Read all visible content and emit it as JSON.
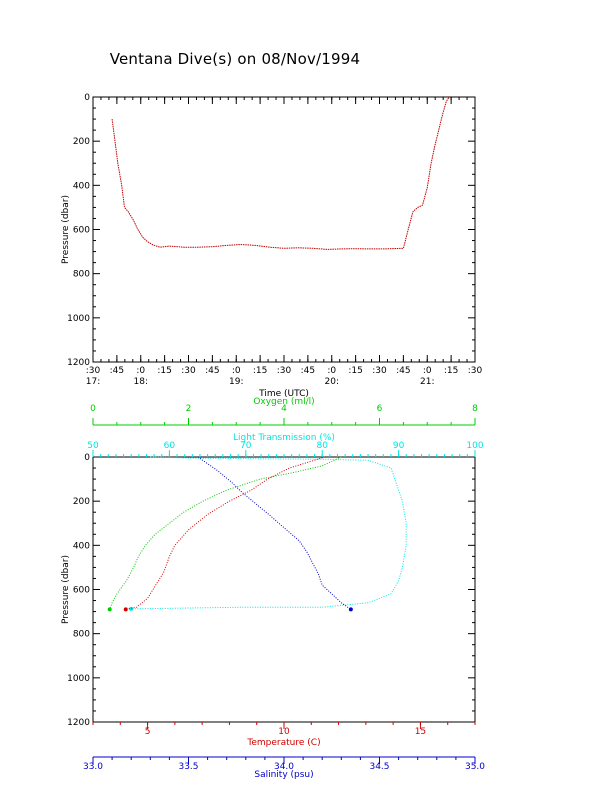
{
  "title": "Ventana Dive(s) on 08/Nov/1994",
  "chart_data": [
    {
      "type": "line",
      "title": "Ventana Dive(s) on 08/Nov/1994",
      "xlabel": "Time (UTC)",
      "ylabel": "Pressure (dbar)",
      "ylim": [
        1200,
        0
      ],
      "yticks": [
        0,
        200,
        400,
        600,
        800,
        1000,
        1200
      ],
      "xlim": [
        17.5,
        21.5
      ],
      "xticks_minutes": [
        ":30",
        ":45",
        ":0",
        ":15",
        ":30",
        ":45",
        ":0",
        ":15",
        ":30",
        ":45",
        ":0",
        ":15",
        ":30",
        ":45",
        ":0",
        ":15",
        ":30"
      ],
      "xticks_hours": [
        "17:",
        "18:",
        "19:",
        "20:",
        "21:"
      ],
      "series": [
        {
          "color": "#c00000",
          "x": [
            17.7,
            17.73,
            17.76,
            17.8,
            17.83,
            17.87,
            17.92,
            17.97,
            18.02,
            18.07,
            18.13,
            18.2,
            18.3,
            18.45,
            18.6,
            18.75,
            18.9,
            19.05,
            19.2,
            19.35,
            19.5,
            19.65,
            19.8,
            19.95,
            20.1,
            20.25,
            20.4,
            20.55,
            20.75,
            20.8,
            20.85,
            20.9,
            20.95,
            21.0,
            21.04,
            21.08,
            21.12,
            21.16,
            21.2,
            21.23
          ],
          "y": [
            100,
            200,
            300,
            400,
            500,
            520,
            555,
            600,
            635,
            655,
            670,
            680,
            675,
            680,
            680,
            678,
            672,
            668,
            672,
            680,
            685,
            683,
            685,
            690,
            688,
            687,
            688,
            688,
            685,
            600,
            520,
            500,
            490,
            410,
            300,
            220,
            150,
            80,
            20,
            0
          ]
        }
      ]
    },
    {
      "type": "scatter",
      "ylabel": "Pressure (dbar)",
      "ylim": [
        1200,
        0
      ],
      "yticks": [
        0,
        200,
        400,
        600,
        800,
        1000,
        1200
      ],
      "axes": [
        {
          "label": "Oxygen (ml/l)",
          "position": "top",
          "color": "#00cc00",
          "range": [
            0,
            8
          ],
          "ticks": [
            "0",
            "2",
            "4",
            "6",
            "8"
          ]
        },
        {
          "label": "Light Transmission (%)",
          "position": "top",
          "color": "#00e5e5",
          "range": [
            50,
            100
          ],
          "ticks": [
            "50",
            "60",
            "70",
            "80",
            "90",
            "100"
          ]
        },
        {
          "label": "Temperature (C)",
          "position": "bottom",
          "color": "#d00000",
          "range": [
            3,
            17
          ],
          "ticks": [
            "5",
            "10",
            "15"
          ]
        },
        {
          "label": "Salinity (psu)",
          "position": "bottom",
          "color": "#0000cc",
          "range": [
            33.0,
            35.0
          ],
          "ticks": [
            "33.0",
            "33.5",
            "34.0",
            "34.5",
            "35.0"
          ]
        }
      ],
      "series": [
        {
          "axis": "Oxygen (ml/l)",
          "color": "#00cc00",
          "x": [
            5.2,
            4.8,
            4.2,
            3.5,
            2.8,
            2.3,
            1.9,
            1.6,
            1.3,
            1.1,
            0.95,
            0.85,
            0.7,
            0.5,
            0.4,
            0.35
          ],
          "y": [
            0,
            40,
            70,
            100,
            150,
            200,
            250,
            300,
            350,
            400,
            450,
            500,
            560,
            620,
            660,
            690
          ]
        },
        {
          "axis": "Light Transmission (%)",
          "color": "#00e5e5",
          "x": [
            57.5,
            63,
            72,
            80,
            86,
            89,
            90.5,
            91,
            91,
            90.5,
            90,
            89,
            86,
            80,
            70,
            60,
            55
          ],
          "y": [
            0,
            5,
            8,
            10,
            15,
            50,
            200,
            300,
            400,
            500,
            560,
            620,
            660,
            680,
            680,
            685,
            688
          ]
        },
        {
          "axis": "Temperature (C)",
          "color": "#d00000",
          "x": [
            11.5,
            10.2,
            9.4,
            8.8,
            8.0,
            7.2,
            6.5,
            6.0,
            5.8,
            5.6,
            5.2,
            5.0,
            4.6,
            4.2
          ],
          "y": [
            0,
            50,
            100,
            150,
            200,
            260,
            330,
            400,
            450,
            520,
            600,
            640,
            680,
            690
          ]
        },
        {
          "axis": "Salinity (psu)",
          "color": "#0000cc",
          "x": [
            33.55,
            33.65,
            33.72,
            33.78,
            33.85,
            33.92,
            34.0,
            34.08,
            34.12,
            34.15,
            34.18,
            34.2,
            34.25,
            34.3,
            34.35
          ],
          "y": [
            0,
            60,
            110,
            160,
            210,
            260,
            320,
            380,
            430,
            480,
            530,
            580,
            620,
            660,
            690
          ]
        }
      ]
    }
  ]
}
